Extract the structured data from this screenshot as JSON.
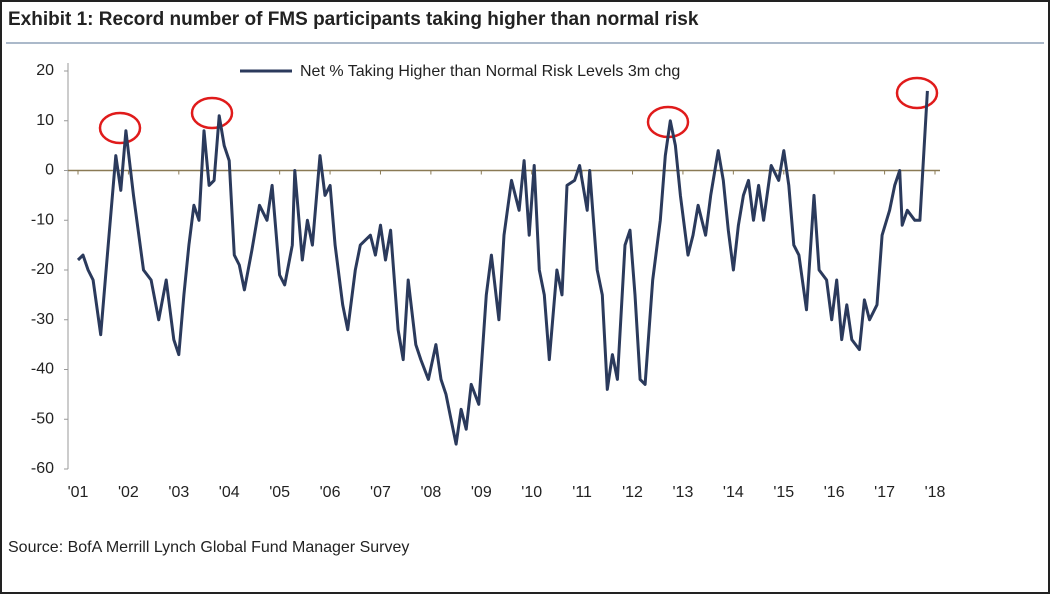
{
  "chart_data": {
    "type": "line",
    "title": "Exhibit 1: Record number of FMS participants taking higher than normal risk",
    "source": "Source: BofA Merrill Lynch Global Fund Manager Survey",
    "series": [
      {
        "name": "Net % Taking Higher than Normal Risk Levels 3m chg",
        "color": "#2b3a5c",
        "x": [
          2001.0,
          2001.1,
          2001.2,
          2001.3,
          2001.45,
          2001.6,
          2001.75,
          2001.85,
          2001.95,
          2002.1,
          2002.3,
          2002.45,
          2002.6,
          2002.75,
          2002.9,
          2003.0,
          2003.1,
          2003.2,
          2003.3,
          2003.4,
          2003.5,
          2003.6,
          2003.7,
          2003.8,
          2003.9,
          2004.0,
          2004.1,
          2004.2,
          2004.3,
          2004.45,
          2004.6,
          2004.75,
          2004.85,
          2005.0,
          2005.1,
          2005.25,
          2005.3,
          2005.45,
          2005.55,
          2005.65,
          2005.8,
          2005.9,
          2006.0,
          2006.1,
          2006.25,
          2006.35,
          2006.5,
          2006.6,
          2006.8,
          2006.9,
          2007.0,
          2007.1,
          2007.2,
          2007.35,
          2007.45,
          2007.55,
          2007.7,
          2007.8,
          2007.95,
          2008.1,
          2008.2,
          2008.3,
          2008.4,
          2008.5,
          2008.6,
          2008.7,
          2008.8,
          2008.95,
          2009.1,
          2009.2,
          2009.35,
          2009.45,
          2009.6,
          2009.75,
          2009.85,
          2009.95,
          2010.05,
          2010.15,
          2010.25,
          2010.35,
          2010.5,
          2010.6,
          2010.7,
          2010.85,
          2010.95,
          2011.1,
          2011.15,
          2011.3,
          2011.4,
          2011.5,
          2011.6,
          2011.7,
          2011.85,
          2011.95,
          2012.05,
          2012.15,
          2012.25,
          2012.4,
          2012.55,
          2012.65,
          2012.75,
          2012.85,
          2012.95,
          2013.1,
          2013.2,
          2013.3,
          2013.45,
          2013.55,
          2013.7,
          2013.8,
          2013.9,
          2014.0,
          2014.1,
          2014.2,
          2014.3,
          2014.4,
          2014.5,
          2014.6,
          2014.75,
          2014.9,
          2015.0,
          2015.1,
          2015.2,
          2015.3,
          2015.45,
          2015.6,
          2015.7,
          2015.85,
          2015.95,
          2016.05,
          2016.15,
          2016.25,
          2016.35,
          2016.5,
          2016.6,
          2016.7,
          2016.85,
          2016.95,
          2017.1,
          2017.2,
          2017.3,
          2017.35,
          2017.45,
          2017.6,
          2017.7,
          2017.85
        ],
        "values": [
          -18,
          -17,
          -20,
          -22,
          -33,
          -15,
          3,
          -4,
          8,
          -5,
          -20,
          -22,
          -30,
          -22,
          -34,
          -37,
          -25,
          -15,
          -7,
          -10,
          8,
          -3,
          -2,
          11,
          5,
          2,
          -17,
          -19,
          -24,
          -16,
          -7,
          -10,
          -3,
          -21,
          -23,
          -15,
          0,
          -18,
          -10,
          -15,
          3,
          -5,
          -3,
          -15,
          -27,
          -32,
          -20,
          -15,
          -13,
          -17,
          -11,
          -18,
          -12,
          -32,
          -38,
          -22,
          -35,
          -38,
          -42,
          -35,
          -42,
          -45,
          -50,
          -55,
          -48,
          -52,
          -43,
          -47,
          -25,
          -17,
          -30,
          -13,
          -2,
          -8,
          2,
          -13,
          1,
          -20,
          -25,
          -38,
          -20,
          -25,
          -3,
          -2,
          1,
          -8,
          0,
          -20,
          -25,
          -44,
          -37,
          -42,
          -15,
          -12,
          -25,
          -42,
          -43,
          -22,
          -10,
          3,
          10,
          5,
          -5,
          -17,
          -13,
          -7,
          -13,
          -5,
          4,
          -2,
          -12,
          -20,
          -11,
          -5,
          -2,
          -10,
          -3,
          -10,
          1,
          -2,
          4,
          -3,
          -15,
          -17,
          -28,
          -5,
          -20,
          -22,
          -30,
          -22,
          -34,
          -27,
          -34,
          -36,
          -26,
          -30,
          -27,
          -13,
          -8,
          -3,
          0,
          -11,
          -8,
          -10,
          -10,
          16
        ]
      }
    ],
    "xlim": [
      2001,
      2018
    ],
    "xticks": [
      {
        "value": 2001,
        "label": "'01"
      },
      {
        "value": 2002,
        "label": "'02"
      },
      {
        "value": 2003,
        "label": "'03"
      },
      {
        "value": 2004,
        "label": "'04"
      },
      {
        "value": 2005,
        "label": "'05"
      },
      {
        "value": 2006,
        "label": "'06"
      },
      {
        "value": 2007,
        "label": "'07"
      },
      {
        "value": 2008,
        "label": "'08"
      },
      {
        "value": 2009,
        "label": "'09"
      },
      {
        "value": 2010,
        "label": "'10"
      },
      {
        "value": 2011,
        "label": "'11"
      },
      {
        "value": 2012,
        "label": "'12"
      },
      {
        "value": 2013,
        "label": "'13"
      },
      {
        "value": 2014,
        "label": "'14"
      },
      {
        "value": 2015,
        "label": "'15"
      },
      {
        "value": 2016,
        "label": "'16"
      },
      {
        "value": 2017,
        "label": "'17"
      },
      {
        "value": 2018,
        "label": "'18"
      }
    ],
    "ylim": [
      -60,
      20
    ],
    "yticks": [
      -60,
      -50,
      -40,
      -30,
      -20,
      -10,
      0,
      10,
      20
    ],
    "grid": false
  }
}
